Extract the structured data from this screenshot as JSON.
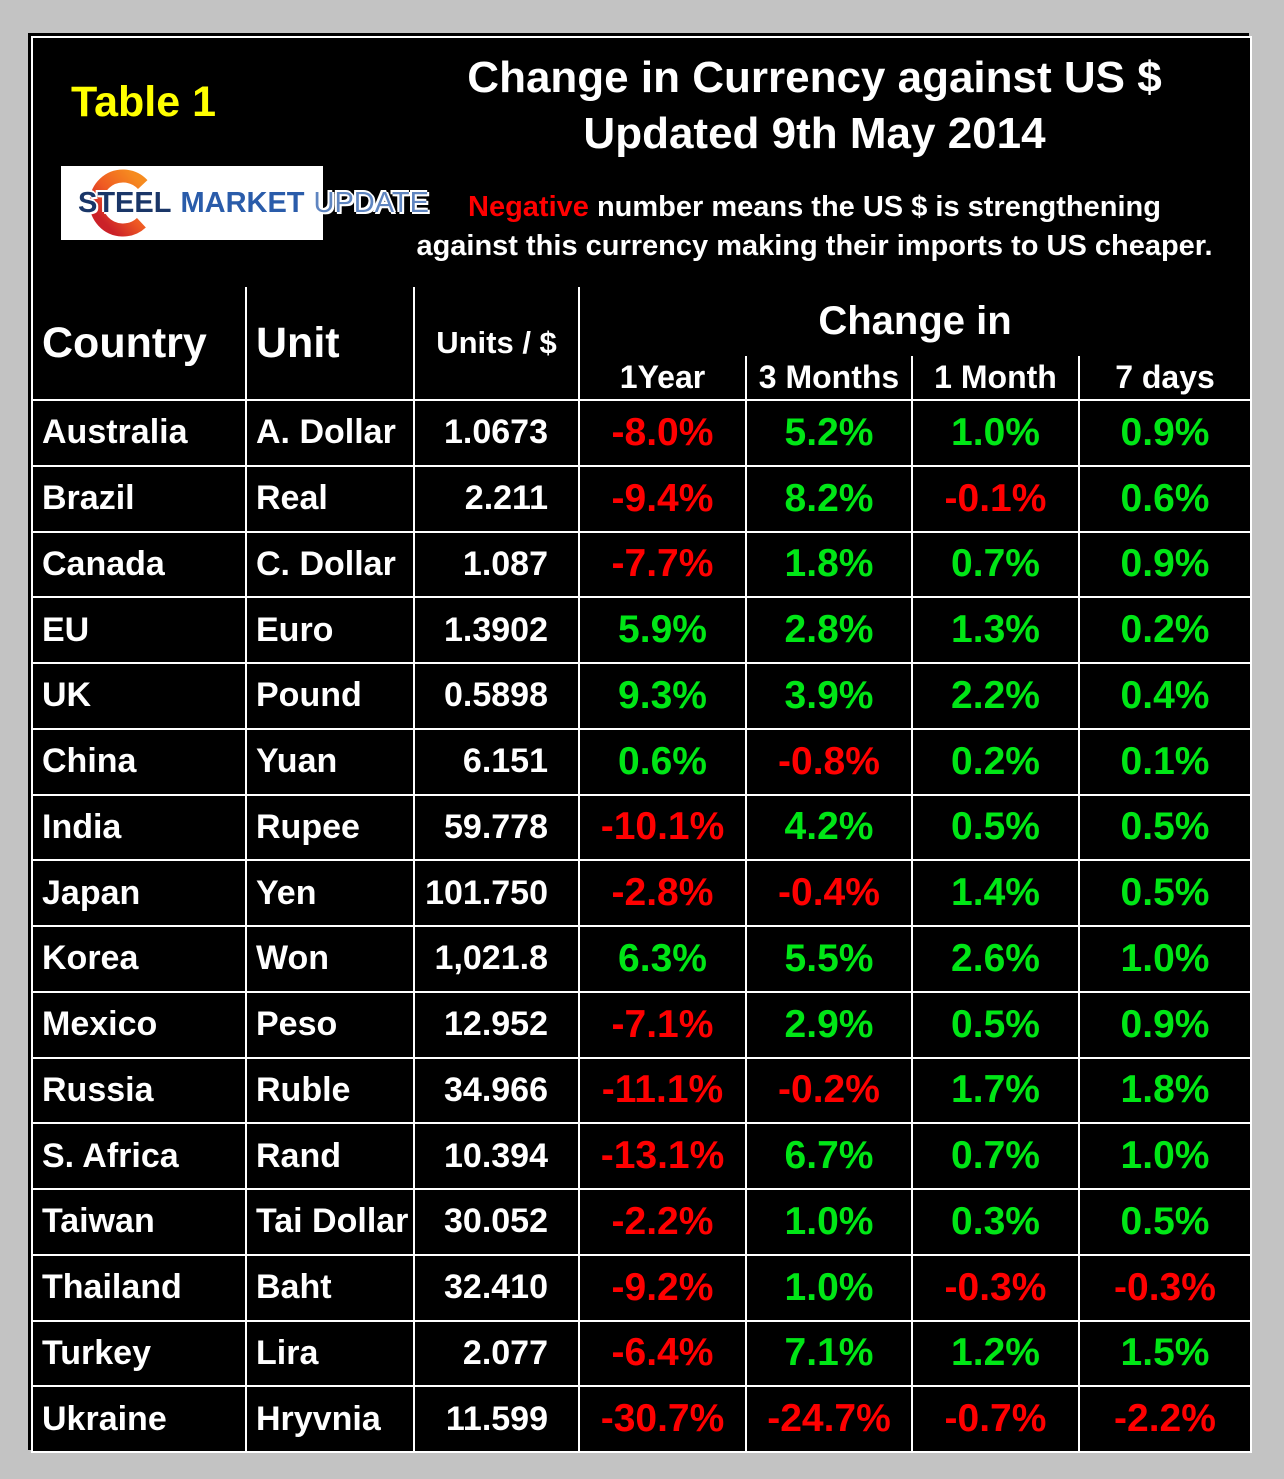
{
  "header": {
    "table_label": "Table 1",
    "title_line1": "Change in Currency against US $",
    "title_line2": "Updated 9th May 2014",
    "note_highlight": "Negative",
    "note_line1_rest": " number means the US $ is strengthening",
    "note_line2": "against this currency making their imports to US cheaper.",
    "logo": {
      "word1": "STEEL",
      "word2": "MARKET",
      "word3": "UPDATE"
    }
  },
  "table": {
    "col_country": "Country",
    "col_unit": "Unit",
    "col_units_per_dollar": "Units / $",
    "col_group": "Change in",
    "periods": [
      "1Year",
      "3 Months",
      "1 Month",
      "7 days"
    ]
  },
  "colors": {
    "positive": "#00e616",
    "negative": "#ff0000",
    "accent_yellow": "#ffff00",
    "grid_line": "#ffffff",
    "panel_bg": "#000000",
    "page_bg": "#c3c3c3"
  },
  "chart_data": {
    "type": "table",
    "title": "Change in Currency against US $",
    "subtitle": "Updated 9th May 2014",
    "note": "Negative number means the US $ is strengthening against this currency making their imports to US cheaper.",
    "group_header": "Change in",
    "columns": [
      "Country",
      "Unit",
      "Units / $",
      "1Year",
      "3 Months",
      "1 Month",
      "7 days"
    ],
    "rows": [
      {
        "country": "Australia",
        "unit": "A. Dollar",
        "units_per_dollar": "1.0673",
        "changes": [
          "-8.0%",
          "5.2%",
          "1.0%",
          "0.9%"
        ]
      },
      {
        "country": "Brazil",
        "unit": "Real",
        "units_per_dollar": "2.211",
        "changes": [
          "-9.4%",
          "8.2%",
          "-0.1%",
          "0.6%"
        ]
      },
      {
        "country": "Canada",
        "unit": "C. Dollar",
        "units_per_dollar": "1.087",
        "changes": [
          "-7.7%",
          "1.8%",
          "0.7%",
          "0.9%"
        ]
      },
      {
        "country": "EU",
        "unit": "Euro",
        "units_per_dollar": "1.3902",
        "changes": [
          "5.9%",
          "2.8%",
          "1.3%",
          "0.2%"
        ]
      },
      {
        "country": "UK",
        "unit": "Pound",
        "units_per_dollar": "0.5898",
        "changes": [
          "9.3%",
          "3.9%",
          "2.2%",
          "0.4%"
        ]
      },
      {
        "country": "China",
        "unit": "Yuan",
        "units_per_dollar": "6.151",
        "changes": [
          "0.6%",
          "-0.8%",
          "0.2%",
          "0.1%"
        ]
      },
      {
        "country": "India",
        "unit": "Rupee",
        "units_per_dollar": "59.778",
        "changes": [
          "-10.1%",
          "4.2%",
          "0.5%",
          "0.5%"
        ]
      },
      {
        "country": "Japan",
        "unit": "Yen",
        "units_per_dollar": "101.750",
        "changes": [
          "-2.8%",
          "-0.4%",
          "1.4%",
          "0.5%"
        ]
      },
      {
        "country": "Korea",
        "unit": "Won",
        "units_per_dollar": "1,021.8",
        "changes": [
          "6.3%",
          "5.5%",
          "2.6%",
          "1.0%"
        ]
      },
      {
        "country": "Mexico",
        "unit": "Peso",
        "units_per_dollar": "12.952",
        "changes": [
          "-7.1%",
          "2.9%",
          "0.5%",
          "0.9%"
        ]
      },
      {
        "country": "Russia",
        "unit": "Ruble",
        "units_per_dollar": "34.966",
        "changes": [
          "-11.1%",
          "-0.2%",
          "1.7%",
          "1.8%"
        ]
      },
      {
        "country": "S. Africa",
        "unit": "Rand",
        "units_per_dollar": "10.394",
        "changes": [
          "-13.1%",
          "6.7%",
          "0.7%",
          "1.0%"
        ]
      },
      {
        "country": "Taiwan",
        "unit": "Tai Dollar",
        "units_per_dollar": "30.052",
        "changes": [
          "-2.2%",
          "1.0%",
          "0.3%",
          "0.5%"
        ]
      },
      {
        "country": "Thailand",
        "unit": "Baht",
        "units_per_dollar": "32.410",
        "changes": [
          "-9.2%",
          "1.0%",
          "-0.3%",
          "-0.3%"
        ]
      },
      {
        "country": "Turkey",
        "unit": "Lira",
        "units_per_dollar": "2.077",
        "changes": [
          "-6.4%",
          "7.1%",
          "1.2%",
          "1.5%"
        ]
      },
      {
        "country": "Ukraine",
        "unit": "Hryvnia",
        "units_per_dollar": "11.599",
        "changes": [
          "-30.7%",
          "-24.7%",
          "-0.7%",
          "-2.2%"
        ]
      }
    ]
  }
}
